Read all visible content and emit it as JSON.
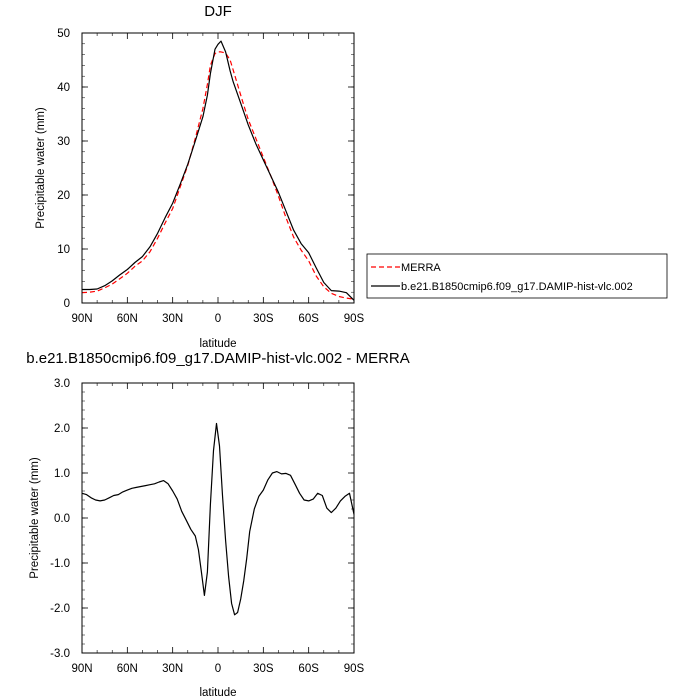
{
  "chart_data": [
    {
      "type": "line",
      "title": "DJF",
      "xlabel": "latitude",
      "ylabel": "Precipitable water (mm)",
      "xlim": [
        90,
        -90
      ],
      "ylim": [
        0,
        50
      ],
      "x_tick_labels": [
        "90N",
        "60N",
        "30N",
        "0",
        "30S",
        "60S",
        "90S"
      ],
      "y_tick_labels": [
        "0",
        "10",
        "20",
        "30",
        "40",
        "50"
      ],
      "legend_position": "right",
      "series": [
        {
          "name": "MERRA",
          "color": "#ff0000",
          "style": "dashed",
          "x": [
            90,
            85,
            80,
            75,
            70,
            65,
            60,
            55,
            50,
            45,
            40,
            35,
            30,
            25,
            20,
            15,
            10,
            7,
            5,
            2,
            0,
            -2,
            -5,
            -8,
            -10,
            -15,
            -20,
            -25,
            -30,
            -35,
            -40,
            -45,
            -50,
            -55,
            -60,
            -65,
            -70,
            -75,
            -80,
            -85,
            -90
          ],
          "y": [
            1.9,
            2.0,
            2.2,
            2.8,
            3.5,
            4.5,
            5.5,
            6.8,
            7.8,
            9.5,
            12.0,
            14.8,
            17.5,
            21.5,
            25.5,
            30.5,
            36.0,
            40.5,
            44.0,
            46.2,
            46.5,
            46.5,
            46.3,
            45.0,
            43.2,
            38.5,
            34.0,
            30.5,
            27.0,
            23.5,
            19.8,
            15.8,
            12.2,
            9.8,
            7.8,
            5.0,
            3.0,
            1.8,
            1.2,
            0.9,
            0.7
          ]
        },
        {
          "name": "b.e21.B1850cmip6.f09_g17.DAMIP-hist-vlc.002",
          "color": "#000000",
          "style": "solid",
          "x": [
            90,
            85,
            80,
            75,
            70,
            65,
            60,
            55,
            50,
            45,
            40,
            35,
            30,
            25,
            20,
            15,
            10,
            7,
            5,
            2,
            0,
            -2,
            -5,
            -8,
            -10,
            -15,
            -20,
            -25,
            -30,
            -35,
            -40,
            -45,
            -50,
            -55,
            -60,
            -65,
            -70,
            -75,
            -80,
            -85,
            -90
          ],
          "y": [
            2.5,
            2.5,
            2.6,
            3.2,
            4.1,
            5.2,
            6.2,
            7.5,
            8.6,
            10.4,
            12.9,
            15.8,
            18.5,
            22.0,
            25.7,
            30.0,
            34.5,
            38.5,
            42.5,
            47.0,
            47.9,
            48.5,
            46.5,
            43.0,
            41.0,
            37.0,
            33.0,
            29.5,
            26.5,
            23.5,
            20.5,
            17.0,
            13.5,
            11.0,
            9.3,
            6.5,
            3.8,
            2.3,
            2.2,
            1.9,
            0.5
          ]
        }
      ]
    },
    {
      "type": "line",
      "title": "b.e21.B1850cmip6.f09_g17.DAMIP-hist-vlc.002 - MERRA",
      "xlabel": "latitude",
      "ylabel": "Precipitable water (mm)",
      "xlim": [
        90,
        -90
      ],
      "ylim": [
        -3.0,
        3.0
      ],
      "x_tick_labels": [
        "90N",
        "60N",
        "30N",
        "0",
        "30S",
        "60S",
        "90S"
      ],
      "y_tick_labels": [
        "-3.0",
        "-2.0",
        "-1.0",
        "0.0",
        "1.0",
        "2.0",
        "3.0"
      ],
      "series": [
        {
          "color": "#000000",
          "style": "solid",
          "x": [
            90,
            87,
            84,
            81,
            78,
            75,
            72,
            69,
            66,
            63,
            60,
            57,
            54,
            51,
            48,
            45,
            42,
            39,
            36,
            33,
            30,
            27,
            24,
            21,
            18,
            15,
            13,
            11,
            9,
            7,
            5,
            3,
            1,
            -1,
            -3,
            -5,
            -7,
            -9,
            -11,
            -13,
            -15,
            -17,
            -19,
            -21,
            -24,
            -27,
            -30,
            -33,
            -36,
            -39,
            -42,
            -45,
            -48,
            -51,
            -54,
            -57,
            -60,
            -63,
            -66,
            -69,
            -72,
            -75,
            -78,
            -81,
            -84,
            -87,
            -90
          ],
          "y": [
            0.55,
            0.52,
            0.45,
            0.4,
            0.38,
            0.4,
            0.45,
            0.5,
            0.52,
            0.58,
            0.62,
            0.66,
            0.68,
            0.7,
            0.72,
            0.74,
            0.76,
            0.8,
            0.83,
            0.76,
            0.6,
            0.42,
            0.15,
            -0.05,
            -0.25,
            -0.4,
            -0.7,
            -1.2,
            -1.72,
            -1.2,
            0.3,
            1.5,
            2.1,
            1.6,
            0.5,
            -0.5,
            -1.3,
            -1.9,
            -2.15,
            -2.1,
            -1.8,
            -1.4,
            -0.9,
            -0.3,
            0.2,
            0.48,
            0.62,
            0.85,
            1.0,
            1.03,
            0.98,
            0.99,
            0.95,
            0.75,
            0.55,
            0.4,
            0.38,
            0.42,
            0.55,
            0.5,
            0.22,
            0.12,
            0.22,
            0.38,
            0.48,
            0.55,
            0.08
          ]
        }
      ]
    }
  ]
}
